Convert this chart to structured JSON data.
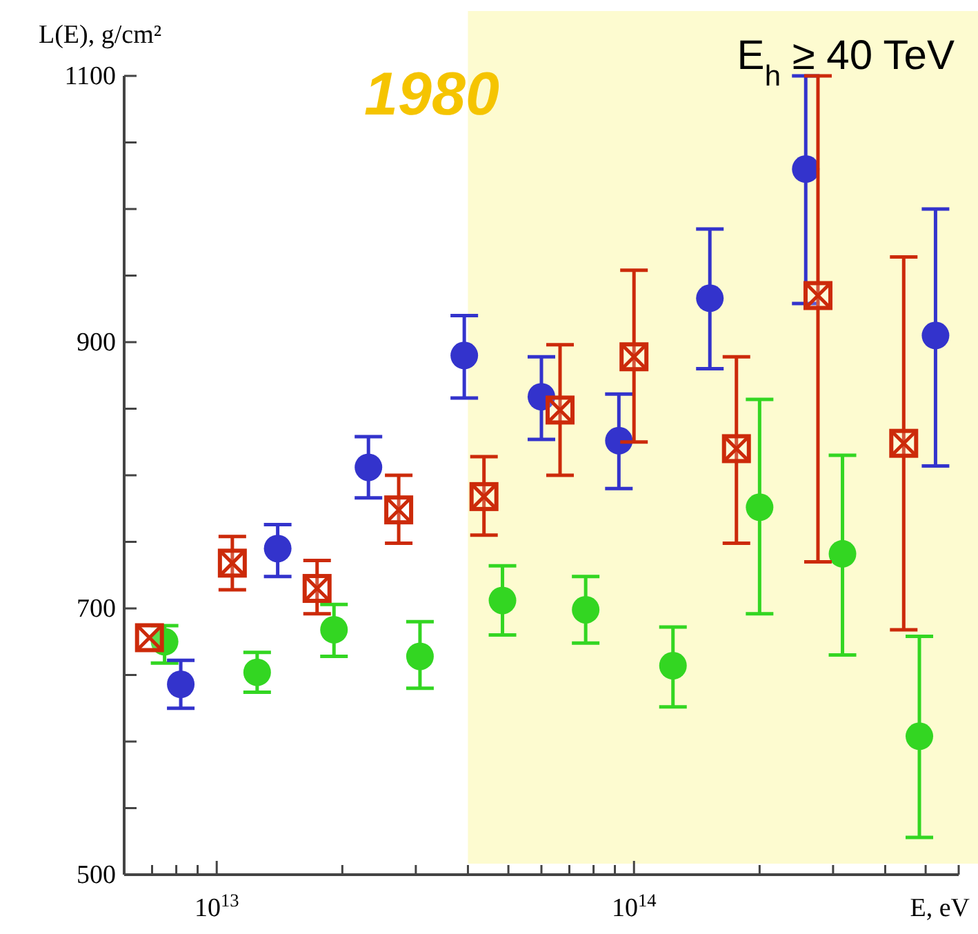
{
  "chart_data": {
    "type": "scatter",
    "ylabel": "L(E), g/cm²",
    "xlabel": "E, eV",
    "log": "x",
    "xlim": [
      6000000000000.0,
      600000000000000.0
    ],
    "xticks": [
      {
        "value": 7000000000000.0,
        "label": null
      },
      {
        "value": 8000000000000.0,
        "label": null
      },
      {
        "value": 9000000000000.0,
        "label": null
      },
      {
        "value": 10000000000000.0,
        "label": "10$^{13}$"
      },
      {
        "value": 20000000000000.0,
        "label": null
      },
      {
        "value": 30000000000000.0,
        "label": null
      },
      {
        "value": 40000000000000.0,
        "label": null
      },
      {
        "value": 50000000000000.0,
        "label": null
      },
      {
        "value": 60000000000000.0,
        "label": null
      },
      {
        "value": 70000000000000.0,
        "label": null
      },
      {
        "value": 80000000000000.0,
        "label": null
      },
      {
        "value": 90000000000000.0,
        "label": null
      },
      {
        "value": 100000000000000.0,
        "label": "10$^{14}$"
      },
      {
        "value": 200000000000000.0,
        "label": null
      },
      {
        "value": 300000000000000.0,
        "label": null
      },
      {
        "value": 400000000000000.0,
        "label": null
      },
      {
        "value": 500000000000000.0,
        "label": null
      },
      {
        "value": 600000000000000.0,
        "label": null
      }
    ],
    "ylim": [
      500,
      1100
    ],
    "yticks": [
      500,
      {
        "value": 550,
        "label": null
      },
      {
        "value": 600,
        "label": null
      },
      {
        "value": 650,
        "label": null
      },
      700,
      {
        "value": 750,
        "label": null
      },
      {
        "value": 800,
        "label": null
      },
      {
        "value": 850,
        "label": null
      },
      900,
      {
        "value": 950,
        "label": null
      },
      {
        "value": 1000,
        "label": null
      },
      {
        "value": 1050,
        "label": null
      },
      1100
    ],
    "bands": [
      {
        "axis": "x",
        "from": 40000000000000.0,
        "to": 600000000000000.0,
        "label": "E$_{h}$ ≥ 40 TeV",
        "color": "#fdfbd0"
      }
    ],
    "annotations": [
      "1980"
    ],
    "grid": false,
    "series": [
      {
        "color": "#cc2a0a",
        "marker": "square",
        "x": [
          6900000000000.0,
          10900000000000.0,
          17400000000000.0,
          27300000000000.0,
          43700000000000.0,
          66500000000000.0,
          100000000000000.0,
          176000000000000.0,
          276000000000000.0,
          443000000000000.0
        ],
        "values": [
          678,
          734,
          715,
          774,
          784,
          849,
          889,
          820,
          935,
          824
        ],
        "errors": [
          null,
          [
            714,
            754
          ],
          [
            696,
            736
          ],
          [
            749,
            800
          ],
          [
            755,
            814
          ],
          [
            800,
            898
          ],
          [
            825,
            954
          ],
          [
            749,
            889
          ],
          [
            735,
            1100
          ],
          [
            684,
            964
          ]
        ]
      },
      {
        "color": "#3333cc",
        "marker": "circle",
        "x": [
          8200000000000.0,
          14000000000000.0,
          23100000000000.0,
          39200000000000.0,
          60000000000000.0,
          92000000000000.0,
          152000000000000.0,
          258000000000000.0,
          528000000000000.0
        ],
        "values": [
          643,
          745,
          806,
          890,
          859,
          826,
          933,
          1030,
          905
        ],
        "errors": [
          [
            625,
            661
          ],
          [
            724,
            763
          ],
          [
            783,
            829
          ],
          [
            858,
            920
          ],
          [
            827,
            889
          ],
          [
            790,
            861
          ],
          [
            880,
            985
          ],
          [
            929,
            1100
          ],
          [
            807,
            1000
          ]
        ]
      },
      {
        "color": "#33d622",
        "marker": "circle",
        "x": [
          7500000000000.0,
          12500000000000.0,
          19100000000000.0,
          30700000000000.0,
          48400000000000.0,
          76600000000000.0,
          124000000000000.0,
          200000000000000.0,
          316000000000000.0,
          483000000000000.0
        ],
        "values": [
          675,
          652,
          684,
          664,
          706,
          699,
          657,
          776,
          741,
          604
        ],
        "errors": [
          [
            659,
            687
          ],
          [
            637,
            667
          ],
          [
            664,
            703
          ],
          [
            640,
            690
          ],
          [
            680,
            732
          ],
          [
            674,
            724
          ],
          [
            626,
            686
          ],
          [
            696,
            857
          ],
          [
            665,
            815
          ],
          [
            528,
            679
          ]
        ]
      }
    ]
  }
}
